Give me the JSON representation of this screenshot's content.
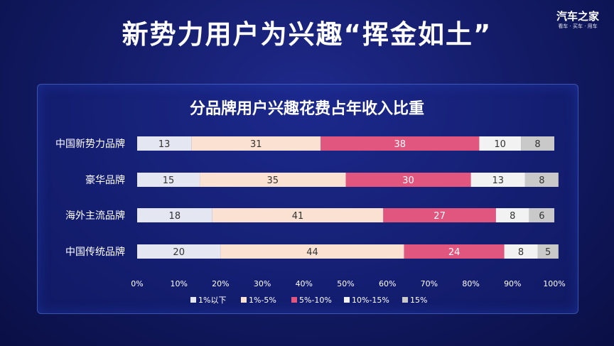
{
  "header": {
    "title": "新势力用户为兴趣“挥金如土”",
    "logo_main": "汽车之家",
    "logo_sub": "看车 · 买车 · 用车"
  },
  "chart_data": {
    "type": "bar",
    "orientation": "horizontal",
    "stacked": true,
    "title": "分品牌用户兴趣花费占年收入比重",
    "categories": [
      "中国新势力品牌",
      "豪华品牌",
      "海外主流品牌",
      "中国传统品牌"
    ],
    "series": [
      {
        "name": "1%以下",
        "color": "#e4e6f1",
        "values": [
          13,
          15,
          18,
          20
        ]
      },
      {
        "name": "1%-5%",
        "color": "#fbe1d1",
        "values": [
          31,
          35,
          41,
          44
        ]
      },
      {
        "name": "5%-10%",
        "color": "#e1567f",
        "values": [
          38,
          30,
          27,
          24
        ]
      },
      {
        "name": "10%-15%",
        "color": "#f2f2f2",
        "values": [
          10,
          13,
          8,
          8
        ]
      },
      {
        "name": "15%",
        "color": "#c9c9c9",
        "values": [
          8,
          8,
          6,
          5
        ]
      }
    ],
    "x_ticks": [
      "0%",
      "10%",
      "20%",
      "30%",
      "40%",
      "50%",
      "60%",
      "70%",
      "80%",
      "90%",
      "100%"
    ],
    "xlim": [
      0,
      100
    ],
    "grid": false,
    "legend_position": "bottom"
  }
}
